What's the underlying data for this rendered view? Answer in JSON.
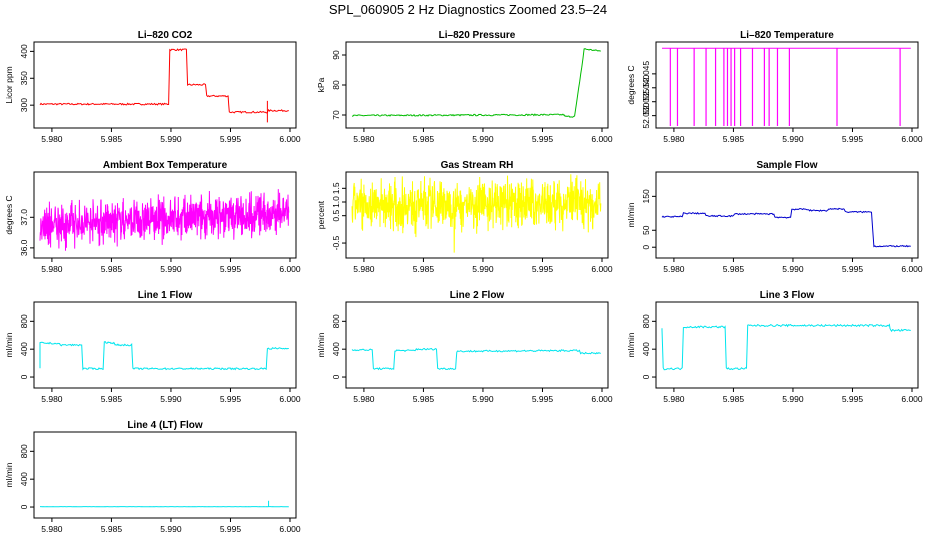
{
  "page": {
    "title": "SPL_060905  2 Hz Diagnostics Zoomed 23.5–24"
  },
  "chart_data": [
    {
      "type": "line",
      "title": "Li–820 CO2",
      "ylabel": "Licor ppm",
      "color": "#ff0000",
      "xlim": [
        5.979,
        6.0
      ],
      "xticks": [
        "5.980",
        "5.985",
        "5.990",
        "5.995",
        "6.000"
      ],
      "ylim": [
        265,
        410
      ],
      "yticks": [
        300,
        350,
        400
      ],
      "series": [
        {
          "x": [
            5.979,
            5.9898,
            5.9899,
            5.9913,
            5.9914,
            5.9929,
            5.993,
            5.9948,
            5.9949,
            5.9981,
            5.9982,
            5.9999
          ],
          "y": [
            302,
            302,
            403,
            403,
            338,
            338,
            317,
            317,
            287,
            287,
            290,
            290
          ],
          "noise": 1.5,
          "spikes": [
            [
              5.9981,
              268
            ],
            [
              5.9981,
              308
            ]
          ]
        }
      ]
    },
    {
      "type": "line",
      "title": "Li–820 Pressure",
      "ylabel": "kPa",
      "color": "#00bb00",
      "xlim": [
        5.979,
        6.0
      ],
      "xticks": [
        "5.980",
        "5.985",
        "5.990",
        "5.995",
        "6.000"
      ],
      "ylim": [
        67,
        93
      ],
      "yticks": [
        70,
        80,
        90
      ],
      "series": [
        {
          "x": [
            5.979,
            5.9968,
            5.9969,
            5.9977,
            5.9983,
            5.9985,
            5.9999
          ],
          "y": [
            69.8,
            70.1,
            69.5,
            69.5,
            86,
            92,
            91.3
          ],
          "noise": 0.25,
          "spikes": []
        }
      ]
    },
    {
      "type": "line",
      "title": "Li–820 Temperature",
      "ylabel": "degrees C",
      "color": "#ff00ff",
      "xlim": [
        5.979,
        6.0
      ],
      "xticks": [
        "5.980",
        "5.985",
        "5.990",
        "5.995",
        "6.000"
      ],
      "ylim": [
        52.027,
        52.055
      ],
      "yticks": [
        "52.030",
        "52.035",
        "52.040",
        "52.045"
      ],
      "series": [
        {
          "x": [
            5.979,
            5.9999
          ],
          "y": [
            52.0542,
            52.0542
          ],
          "noise": 0,
          "drops": [
            5.9797,
            5.9803,
            5.9817,
            5.9827,
            5.9835,
            5.9842,
            5.9845,
            5.9848,
            5.9851,
            5.9856,
            5.9866,
            5.9876,
            5.988,
            5.9887,
            5.9897,
            5.9937,
            5.999
          ]
        }
      ]
    },
    {
      "type": "line",
      "title": "Ambient Box Temperature",
      "ylabel": "degrees C",
      "color": "#ff00ff",
      "xlim": [
        5.979,
        6.0
      ],
      "xticks": [
        "5.980",
        "5.985",
        "5.990",
        "5.995",
        "6.000"
      ],
      "ylim": [
        35.8,
        38.35
      ],
      "yticks": [
        "36.0",
        "37.0"
      ],
      "series": [
        {
          "x": [
            5.979,
            5.9999
          ],
          "y": [
            36.75,
            37.15
          ],
          "noise": 0.55,
          "dense": true
        }
      ]
    },
    {
      "type": "line",
      "title": "Gas Stream RH",
      "ylabel": "percent",
      "color": "#ffff00",
      "xlim": [
        5.979,
        6.0
      ],
      "xticks": [
        "5.980",
        "5.985",
        "5.990",
        "5.995",
        "6.000"
      ],
      "ylim": [
        -0.9,
        1.95
      ],
      "yticks": [
        "-0.5",
        "0.5",
        "1.0",
        "1.5"
      ],
      "series": [
        {
          "x": [
            5.979,
            5.9999
          ],
          "y": [
            0.9,
            0.95
          ],
          "noise": 0.7,
          "dense": true
        }
      ]
    },
    {
      "type": "line",
      "title": "Sample Flow",
      "ylabel": "ml/min",
      "color": "#0000cc",
      "xlim": [
        5.979,
        6.0
      ],
      "xticks": [
        "5.980",
        "5.985",
        "5.990",
        "5.995",
        "6.000"
      ],
      "ylim": [
        -20,
        210
      ],
      "yticks": [
        0,
        50,
        150
      ],
      "series": [
        {
          "x": [
            5.979,
            5.9807,
            5.9808,
            5.9826,
            5.9827,
            5.985,
            5.9851,
            5.9884,
            5.9885,
            5.9898,
            5.9899,
            5.9913,
            5.9914,
            5.9929,
            5.993,
            5.9943,
            5.9944,
            5.9966,
            5.9968,
            5.9999
          ],
          "y": [
            90,
            90,
            100,
            100,
            92,
            92,
            98,
            98,
            88,
            88,
            112,
            112,
            108,
            108,
            113,
            113,
            104,
            104,
            3,
            3
          ],
          "noise": 2,
          "spikes": []
        }
      ]
    },
    {
      "type": "line",
      "title": "Line 1 Flow",
      "ylabel": "ml/min",
      "color": "#00e5ee",
      "xlim": [
        5.979,
        6.0
      ],
      "xticks": [
        "5.980",
        "5.985",
        "5.990",
        "5.995",
        "6.000"
      ],
      "ylim": [
        -100,
        1020
      ],
      "yticks": [
        0,
        400,
        800
      ],
      "series": [
        {
          "x": [
            5.979,
            5.979,
            5.9806,
            5.9807,
            5.9825,
            5.9826,
            5.9843,
            5.9844,
            5.9852,
            5.9853,
            5.9867,
            5.9868,
            5.9869,
            5.998,
            5.9981,
            5.9999
          ],
          "y": [
            120,
            490,
            480,
            460,
            460,
            120,
            120,
            500,
            490,
            460,
            460,
            120,
            120,
            120,
            410,
            410
          ],
          "noise": 12,
          "spikes": []
        }
      ]
    },
    {
      "type": "line",
      "title": "Line 2 Flow",
      "ylabel": "ml/min",
      "color": "#00e5ee",
      "xlim": [
        5.979,
        6.0
      ],
      "xticks": [
        "5.980",
        "5.985",
        "5.990",
        "5.995",
        "6.000"
      ],
      "ylim": [
        -100,
        1020
      ],
      "yticks": [
        0,
        400,
        800
      ],
      "series": [
        {
          "x": [
            5.979,
            5.9807,
            5.9808,
            5.9825,
            5.9826,
            5.9843,
            5.9844,
            5.9861,
            5.9862,
            5.9877,
            5.9878,
            5.9981,
            5.9982,
            5.9999
          ],
          "y": [
            390,
            390,
            120,
            120,
            380,
            380,
            400,
            400,
            120,
            120,
            370,
            380,
            340,
            340
          ],
          "noise": 12,
          "spikes": []
        }
      ]
    },
    {
      "type": "line",
      "title": "Line 3 Flow",
      "ylabel": "ml/min",
      "color": "#00e5ee",
      "xlim": [
        5.979,
        6.0
      ],
      "xticks": [
        "5.980",
        "5.985",
        "5.990",
        "5.995",
        "6.000"
      ],
      "ylim": [
        -100,
        1020
      ],
      "yticks": [
        0,
        400,
        800
      ],
      "series": [
        {
          "x": [
            5.979,
            5.979,
            5.9791,
            5.9807,
            5.9808,
            5.9843,
            5.9844,
            5.9861,
            5.9862,
            5.9981,
            5.9982,
            5.9999
          ],
          "y": [
            690,
            690,
            120,
            120,
            720,
            720,
            120,
            120,
            740,
            740,
            670,
            670
          ],
          "noise": 14,
          "spikes": []
        }
      ]
    },
    {
      "type": "line",
      "title": "Line 4 (LT) Flow",
      "ylabel": "ml/min",
      "color": "#00e5ee",
      "xlim": [
        5.979,
        6.0
      ],
      "xticks": [
        "5.980",
        "5.985",
        "5.990",
        "5.995",
        "6.000"
      ],
      "ylim": [
        -100,
        1020
      ],
      "yticks": [
        0,
        400,
        800
      ],
      "series": [
        {
          "x": [
            5.979,
            5.9999
          ],
          "y": [
            5,
            5
          ],
          "noise": 2,
          "spikes": [
            [
              5.9982,
              90
            ]
          ]
        }
      ]
    }
  ]
}
